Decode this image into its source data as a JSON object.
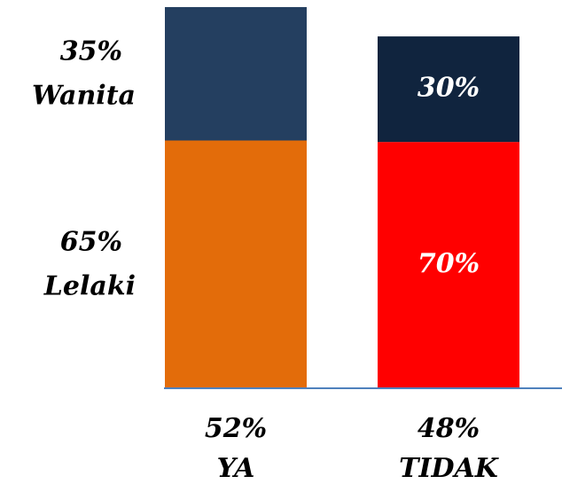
{
  "chart_data": {
    "type": "stacked-bar",
    "categories": [
      "YA",
      "TIDAK"
    ],
    "category_values": [
      52,
      48
    ],
    "category_value_labels": [
      "52%",
      "48%"
    ],
    "series": [
      {
        "name": "Lelaki",
        "values": [
          65,
          70
        ],
        "value_labels": [
          "65%",
          "70%"
        ],
        "colors": [
          "#e36c0a",
          "#ff0000"
        ]
      },
      {
        "name": "Wanita",
        "values": [
          35,
          30
        ],
        "value_labels": [
          "35%",
          "30%"
        ],
        "colors": [
          "#243f60",
          "#10243e"
        ]
      }
    ]
  }
}
